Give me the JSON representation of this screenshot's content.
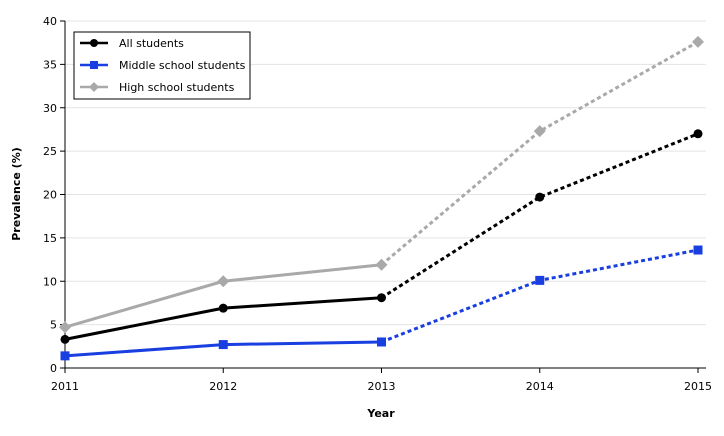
{
  "chart_data": {
    "type": "line",
    "title": "",
    "xlabel": "Year",
    "ylabel": "Prevalence (%)",
    "x": [
      2011,
      2012,
      2013,
      2014,
      2015
    ],
    "x_tick_labels": [
      "2011",
      "2012",
      "2013",
      "2014",
      "2015"
    ],
    "ylim": [
      0,
      40
    ],
    "y_ticks": [
      0,
      5,
      10,
      15,
      20,
      25,
      30,
      35,
      40
    ],
    "y_tick_labels": [
      "0",
      "5",
      "10",
      "15",
      "20",
      "25",
      "30",
      "35",
      "40"
    ],
    "grid": "horizontal",
    "legend_position": "top-left",
    "annotation": "Solid lines 2011–2013; dotted lines 2013–2015",
    "series": [
      {
        "name": "All students",
        "color": "#000000",
        "marker": "circle",
        "values": [
          3.3,
          6.9,
          8.1,
          19.7,
          27.0
        ]
      },
      {
        "name": "Middle school students",
        "color": "#1a3fe0",
        "marker": "square",
        "values": [
          1.4,
          2.7,
          3.0,
          10.1,
          13.6
        ]
      },
      {
        "name": "High school students",
        "color": "#a9a9a9",
        "marker": "diamond",
        "values": [
          4.7,
          10.0,
          11.9,
          27.3,
          37.6
        ]
      }
    ],
    "legend": {
      "items": [
        {
          "label": "All students"
        },
        {
          "label": "Middle school students"
        },
        {
          "label": "High school students"
        }
      ]
    }
  }
}
